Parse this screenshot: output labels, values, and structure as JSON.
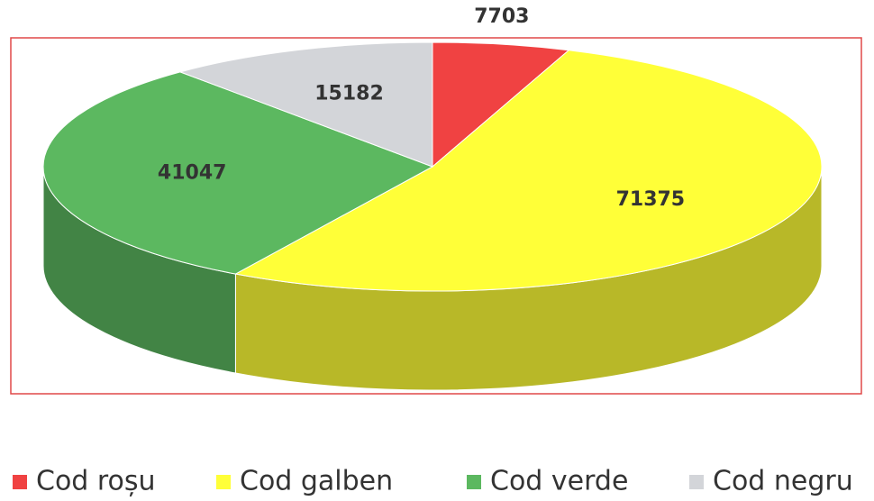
{
  "chart_data": {
    "type": "pie",
    "categories": [
      "Cod roșu",
      "Cod galben",
      "Cod verde",
      "Cod negru"
    ],
    "values": [
      7703,
      71375,
      41047,
      15182
    ],
    "colors": [
      "#f04242",
      "#ffff38",
      "#5cb860",
      "#d3d5d9"
    ],
    "legend": "bottom"
  }
}
